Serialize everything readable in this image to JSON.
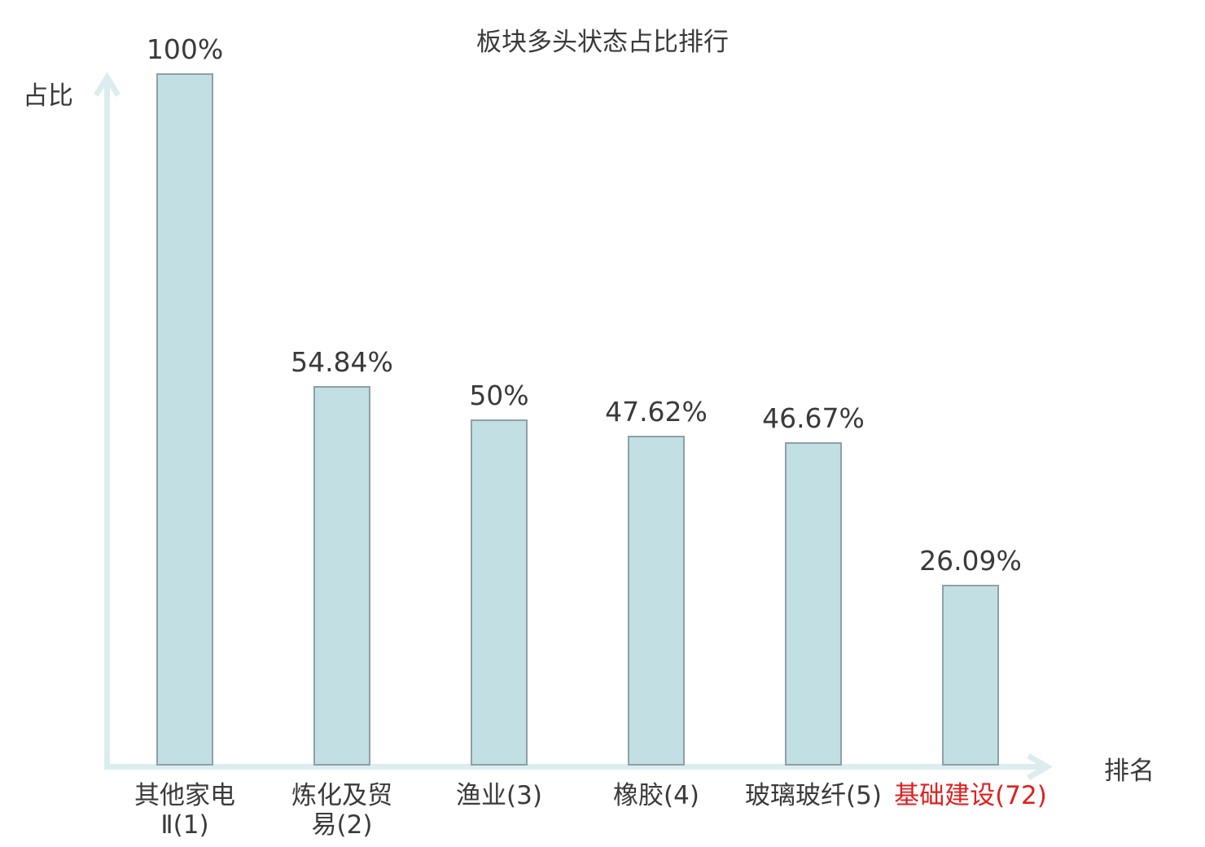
{
  "chart_data": {
    "type": "bar",
    "title": "板块多头状态占比排行",
    "xlabel": "排名",
    "ylabel": "占比",
    "ylim": [
      0,
      100
    ],
    "unit": "%",
    "grid": false,
    "legend_position": "none",
    "categories": [
      "其他家电Ⅱ(1)",
      "炼化及贸易(2)",
      "渔业(3)",
      "橡胶(4)",
      "玻璃玻纤(5)",
      "基础建设(72)"
    ],
    "values": [
      100,
      54.84,
      50,
      47.62,
      46.67,
      26.09
    ],
    "bars": [
      {
        "category": "其他家电Ⅱ(1)",
        "label_lines": [
          "其他家电",
          "Ⅱ(1)"
        ],
        "rank": 1,
        "value": 100,
        "value_label": "100%",
        "highlighted": false
      },
      {
        "category": "炼化及贸易(2)",
        "label_lines": [
          "炼化及贸",
          "易(2)"
        ],
        "rank": 2,
        "value": 54.84,
        "value_label": "54.84%",
        "highlighted": false
      },
      {
        "category": "渔业(3)",
        "label_lines": [
          "渔业(3)"
        ],
        "rank": 3,
        "value": 50,
        "value_label": "50%",
        "highlighted": false
      },
      {
        "category": "橡胶(4)",
        "label_lines": [
          "橡胶(4)"
        ],
        "rank": 4,
        "value": 47.62,
        "value_label": "47.62%",
        "highlighted": false
      },
      {
        "category": "玻璃玻纤(5)",
        "label_lines": [
          "玻璃玻纤(5)"
        ],
        "rank": 5,
        "value": 46.67,
        "value_label": "46.67%",
        "highlighted": false
      },
      {
        "category": "基础建设(72)",
        "label_lines": [
          "基础建设(72)"
        ],
        "rank": 72,
        "value": 26.09,
        "value_label": "26.09%",
        "highlighted": true
      }
    ],
    "colors": {
      "bar_fill": "#c2dfe3",
      "bar_border": "#8ca1a7",
      "axis": "#dcedf0",
      "text": "#3a3a3a",
      "highlight_text": "#de2121",
      "background": "#ffffff"
    }
  }
}
